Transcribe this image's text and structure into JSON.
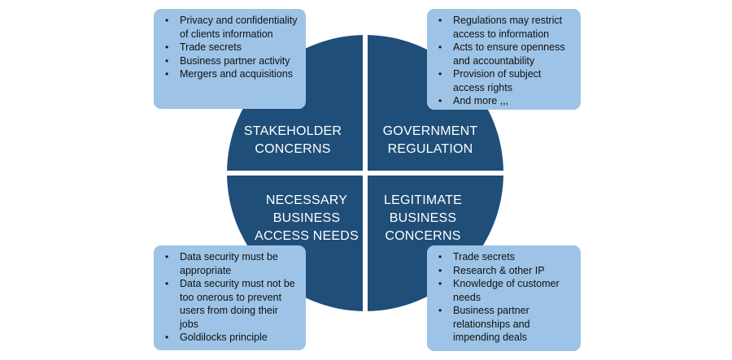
{
  "quadrants": {
    "top_left": {
      "lines": [
        "STAKEHOLDER",
        "CONCERNS"
      ]
    },
    "top_right": {
      "lines": [
        "GOVERNMENT",
        "REGULATION"
      ]
    },
    "bottom_left": {
      "lines": [
        "NECESSARY",
        "BUSINESS",
        "ACCESS NEEDS"
      ]
    },
    "bottom_right": {
      "lines": [
        "LEGITIMATE",
        "BUSINESS",
        "CONCERNS"
      ]
    }
  },
  "boxes": {
    "top_left": {
      "items": [
        "Privacy and confidentiality of clients information",
        "Trade secrets",
        "Business partner activity",
        "Mergers and acquisitions"
      ]
    },
    "top_right": {
      "items": [
        "Regulations may restrict access to information",
        "Acts to ensure openness and accountability",
        "Provision of subject access rights",
        "And more ,,,"
      ]
    },
    "bottom_left": {
      "items": [
        "Data security must be appropriate",
        "Data security must not be too onerous to prevent users from doing their jobs",
        "Goldilocks principle"
      ]
    },
    "bottom_right": {
      "items": [
        "Trade secrets",
        "Research & other IP",
        "Knowledge of customer needs",
        "Business partner relationships and impending deals"
      ]
    }
  },
  "colors": {
    "circle": "#1f4e79",
    "box": "#9dc3e6",
    "divider": "#ffffff"
  }
}
